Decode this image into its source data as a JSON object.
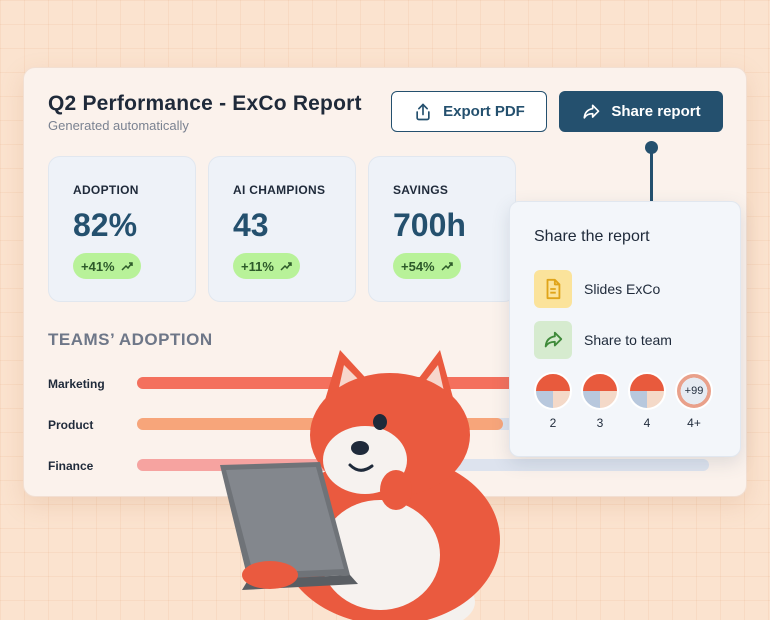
{
  "report": {
    "title": "Q2 Performance - ExCo Report",
    "subtitle": "Generated automatically",
    "export_label": "Export PDF",
    "share_label": "Share report"
  },
  "stats": [
    {
      "label": "ADOPTION",
      "value": "82%",
      "change": "+41%"
    },
    {
      "label": "AI CHAMPIONS",
      "value": "43",
      "change": "+11%"
    },
    {
      "label": "SAVINGS",
      "value": "700h",
      "change": "+54%"
    }
  ],
  "teams": {
    "title": "TEAMS’ ADOPTION",
    "rows": [
      {
        "label": "Marketing",
        "fraction": 0.95,
        "color": "#f4705d"
      },
      {
        "label": "Product",
        "fraction": 0.64,
        "color": "#f7a57a"
      },
      {
        "label": "Finance",
        "fraction": 0.35,
        "color": "#f6a3a0"
      }
    ]
  },
  "share_popup": {
    "title": "Share the report",
    "options": [
      {
        "label": "Slides ExCo",
        "icon": "document-icon",
        "bg": "#fbe39b"
      },
      {
        "label": "Share to team",
        "icon": "share-arrow-icon",
        "bg": "#d6ebcf"
      }
    ],
    "avatars": [
      {
        "count": "2"
      },
      {
        "count": "3"
      },
      {
        "count": "4"
      },
      {
        "count": "4+",
        "badge": "+99"
      }
    ]
  },
  "colors": {
    "primary": "#24506e",
    "positive_badge": "#b8f299",
    "background": "#fbe3cf"
  }
}
